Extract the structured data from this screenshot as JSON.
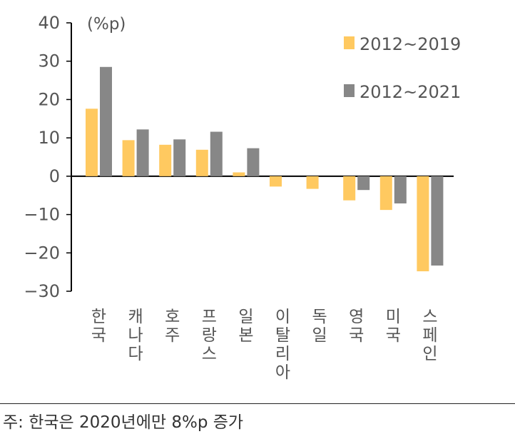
{
  "chart_data": {
    "type": "bar",
    "unit_label": "(%p)",
    "categories": [
      [
        "한",
        "국"
      ],
      [
        "캐",
        "나",
        "다"
      ],
      [
        "호",
        "주"
      ],
      [
        "프",
        "랑",
        "스"
      ],
      [
        "일",
        "본"
      ],
      [
        "이",
        "탈",
        "리",
        "아"
      ],
      [
        "독",
        "일"
      ],
      [
        "영",
        "국"
      ],
      [
        "미",
        "국"
      ],
      [
        "스",
        "페",
        "인"
      ]
    ],
    "series": [
      {
        "name": "2012~2019",
        "color": "#FFC960",
        "values": [
          17.6,
          9.4,
          8.2,
          6.9,
          1.0,
          -2.7,
          -3.3,
          -6.3,
          -8.8,
          -24.8
        ]
      },
      {
        "name": "2012~2021",
        "color": "#878787",
        "values": [
          28.5,
          12.2,
          9.6,
          11.6,
          7.3,
          null,
          null,
          -3.6,
          -7.1,
          -23.3
        ]
      }
    ],
    "ylim": [
      -30,
      40
    ],
    "yticks": [
      40,
      30,
      20,
      10,
      0,
      -10,
      -20,
      -30
    ],
    "ytick_labels": [
      "40",
      "30",
      "20",
      "10",
      "0",
      "−10",
      "−20",
      "−30"
    ],
    "legend_position": "top-right",
    "grid": false
  },
  "footnote": "주: 한국은 2020년에만 8%p 증가"
}
